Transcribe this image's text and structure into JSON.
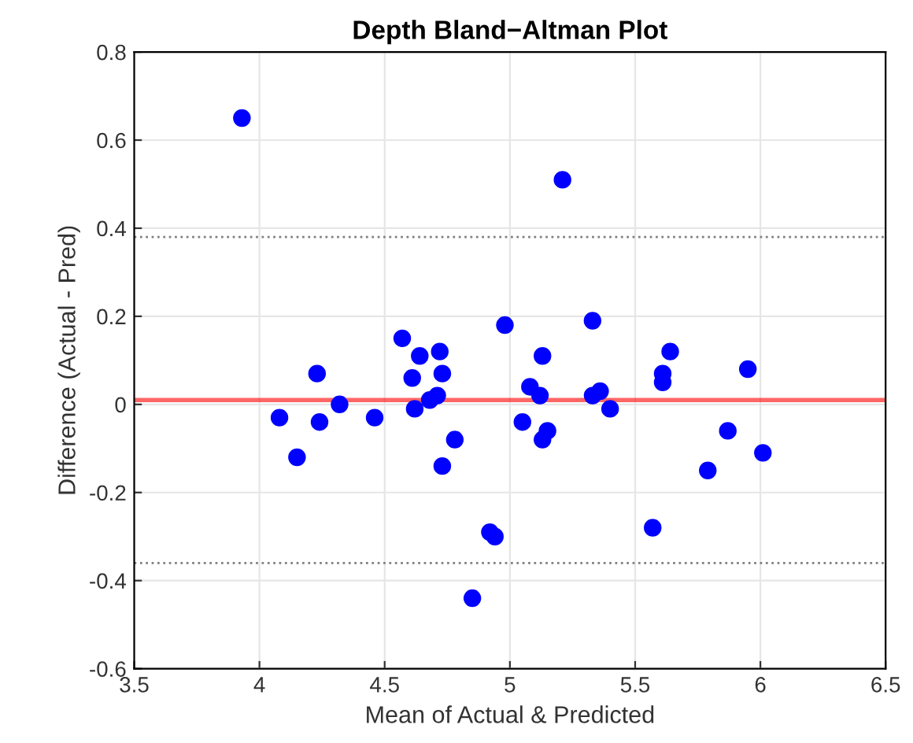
{
  "chart_data": {
    "type": "scatter",
    "title": "Depth Bland−Altman Plot",
    "xlabel": "Mean of Actual & Predicted",
    "ylabel": "Difference (Actual - Pred)",
    "x": [
      3.93,
      4.08,
      4.15,
      4.23,
      4.24,
      4.32,
      4.46,
      4.57,
      4.61,
      4.62,
      4.64,
      4.68,
      4.71,
      4.72,
      4.73,
      4.73,
      4.78,
      4.85,
      4.92,
      4.94,
      4.98,
      5.05,
      5.08,
      5.12,
      5.13,
      5.13,
      5.15,
      5.21,
      5.33,
      5.33,
      5.36,
      5.4,
      5.57,
      5.61,
      5.61,
      5.64,
      5.79,
      5.87,
      5.95,
      6.01
    ],
    "series": [
      {
        "color": "#0000ff",
        "values": [
          0.65,
          -0.03,
          -0.12,
          0.07,
          -0.04,
          0.0,
          -0.03,
          0.15,
          0.06,
          -0.01,
          0.11,
          0.01,
          0.02,
          0.12,
          0.07,
          -0.14,
          -0.08,
          -0.44,
          -0.29,
          -0.3,
          0.18,
          -0.04,
          0.04,
          0.02,
          0.11,
          -0.08,
          -0.06,
          0.51,
          0.19,
          0.02,
          0.03,
          -0.01,
          -0.28,
          0.07,
          0.05,
          0.12,
          -0.15,
          -0.06,
          0.08,
          -0.11
        ]
      }
    ],
    "marker": "circle",
    "grid": true,
    "legend": false,
    "xlim": [
      3.5,
      6.5
    ],
    "xticks": [
      3.5,
      4,
      4.5,
      5,
      5.5,
      6,
      6.5
    ],
    "ylim": [
      -0.6,
      0.8
    ],
    "yticks": [
      -0.6,
      -0.4,
      -0.2,
      0,
      0.2,
      0.4,
      0.6,
      0.8
    ],
    "ref_lines": [
      {
        "axis": "y",
        "value": 0.01,
        "color": "#ff0000",
        "line_style": "solid"
      },
      {
        "axis": "y",
        "value": 0.38,
        "color": "#808080",
        "line_style": "dotted"
      },
      {
        "axis": "y",
        "value": -0.36,
        "color": "#808080",
        "line_style": "dotted"
      }
    ]
  }
}
